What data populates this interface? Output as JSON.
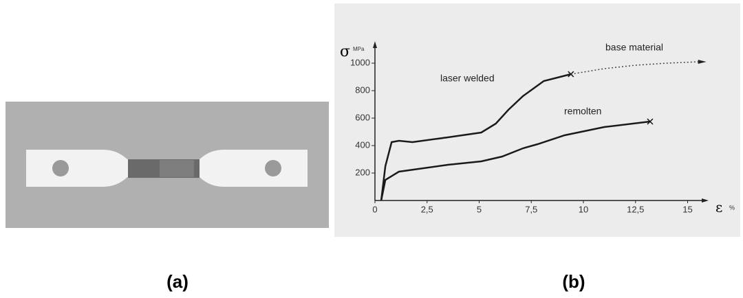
{
  "chart_data": {
    "type": "line",
    "ylabel": "σ",
    "ylabel_unit": "MPa",
    "xlabel": "ε",
    "xlabel_unit": "%",
    "xlim": [
      0,
      15.5
    ],
    "ylim": [
      0,
      1100
    ],
    "xticks": [
      0,
      {
        "value": 2.5,
        "label": "2,5"
      },
      5,
      {
        "value": 7.5,
        "label": "7,5"
      },
      10,
      {
        "value": 12.5,
        "label": "12,5"
      },
      15
    ],
    "yticks": [
      200,
      400,
      600,
      800,
      1000
    ],
    "grid": false,
    "series": [
      {
        "name": "laser welded",
        "color": "#1a1a1a",
        "style": "solid",
        "x": [
          0.3,
          0.5,
          0.8,
          1.15,
          1.8,
          3.5,
          5.1,
          5.8,
          6.4,
          7.1,
          8.1,
          9.4
        ],
        "values": [
          0,
          250,
          425,
          435,
          425,
          460,
          495,
          560,
          660,
          760,
          870,
          920
        ]
      },
      {
        "name": "base material",
        "color": "#444444",
        "style": "dotted",
        "x": [
          9.4,
          11,
          12.5,
          14,
          15.5
        ],
        "values": [
          920,
          960,
          985,
          1000,
          1010
        ]
      },
      {
        "name": "remolten",
        "color": "#1a1a1a",
        "style": "solid",
        "x": [
          0.3,
          0.5,
          1.15,
          3.5,
          5.1,
          6.1,
          7.1,
          7.8,
          9.1,
          11,
          13.2
        ],
        "values": [
          0,
          150,
          210,
          260,
          285,
          320,
          380,
          410,
          475,
          535,
          575
        ]
      }
    ]
  },
  "captions": [
    "(a)",
    "(b)"
  ]
}
